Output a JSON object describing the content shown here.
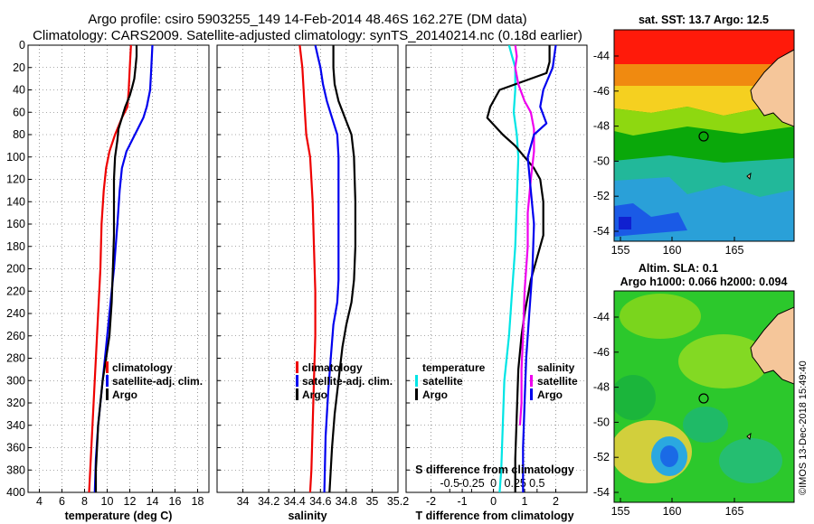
{
  "title_line1": "Argo profile: csiro 5903255_149 14-Feb-2014 48.46S 162.27E (DM data)",
  "title_line2": "Climatology: CARS2009. Satellite-adjusted climatology: synTS_20140214.nc (0.18d earlier)",
  "watermark": "©IMOS 13-Dec-2018 15:49:40",
  "chart_data": [
    {
      "type": "line",
      "id": "temperature",
      "xlabel": "temperature (deg C)",
      "xlim": [
        3,
        19
      ],
      "xticks": [
        4,
        6,
        8,
        10,
        12,
        14,
        16,
        18
      ],
      "ylim": [
        0,
        400
      ],
      "yticks": [
        0,
        20,
        40,
        60,
        80,
        100,
        120,
        140,
        160,
        180,
        200,
        220,
        240,
        260,
        280,
        300,
        320,
        340,
        360,
        380,
        400
      ],
      "legend": [
        "climatology",
        "satellite-adj. clim.",
        "Argo"
      ],
      "series": [
        {
          "name": "climatology",
          "color": "#ee0000",
          "points": [
            [
              12.1,
              0
            ],
            [
              12.0,
              20
            ],
            [
              11.9,
              40
            ],
            [
              11.8,
              55
            ],
            [
              11.3,
              65
            ],
            [
              10.7,
              80
            ],
            [
              10.2,
              95
            ],
            [
              9.9,
              110
            ],
            [
              9.7,
              130
            ],
            [
              9.5,
              160
            ],
            [
              9.4,
              200
            ],
            [
              9.2,
              240
            ],
            [
              9.0,
              280
            ],
            [
              8.8,
              320
            ],
            [
              8.6,
              360
            ],
            [
              8.4,
              400
            ]
          ]
        },
        {
          "name": "satellite-adj. clim.",
          "color": "#0000ee",
          "points": [
            [
              14.0,
              0
            ],
            [
              13.9,
              20
            ],
            [
              13.8,
              40
            ],
            [
              13.5,
              55
            ],
            [
              13.2,
              65
            ],
            [
              12.7,
              75
            ],
            [
              12.2,
              85
            ],
            [
              11.7,
              95
            ],
            [
              11.3,
              110
            ],
            [
              11.1,
              130
            ],
            [
              10.9,
              160
            ],
            [
              10.6,
              200
            ],
            [
              10.2,
              240
            ],
            [
              9.9,
              270
            ],
            [
              9.6,
              300
            ],
            [
              9.4,
              320
            ],
            [
              9.2,
              340
            ],
            [
              9.0,
              370
            ],
            [
              8.9,
              400
            ]
          ]
        },
        {
          "name": "Argo",
          "color": "#000000",
          "points": [
            [
              12.6,
              0
            ],
            [
              12.6,
              10
            ],
            [
              12.5,
              20
            ],
            [
              12.4,
              30
            ],
            [
              12.2,
              38
            ],
            [
              12.0,
              45
            ],
            [
              11.6,
              55
            ],
            [
              11.3,
              65
            ],
            [
              11.0,
              75
            ],
            [
              10.9,
              85
            ],
            [
              10.7,
              100
            ],
            [
              10.6,
              120
            ],
            [
              10.6,
              140
            ],
            [
              10.6,
              170
            ],
            [
              10.5,
              200
            ],
            [
              10.4,
              230
            ],
            [
              10.2,
              260
            ],
            [
              9.9,
              280
            ],
            [
              9.6,
              300
            ],
            [
              9.4,
              320
            ],
            [
              9.2,
              340
            ],
            [
              9.1,
              360
            ],
            [
              9.0,
              380
            ],
            [
              9.0,
              400
            ]
          ]
        }
      ]
    },
    {
      "type": "line",
      "id": "salinity",
      "xlabel": "salinity",
      "xlim": [
        33.8,
        35.2
      ],
      "xticks": [
        34,
        34.2,
        34.4,
        34.6,
        34.8,
        35,
        35.2
      ],
      "xticklabels": [
        "34",
        "34.2",
        "34.4",
        "34.6",
        "34.8",
        "35",
        "35.2"
      ],
      "ylim": [
        0,
        400
      ],
      "legend": [
        "climatology",
        "satellite-adj. clim.",
        "Argo"
      ],
      "series": [
        {
          "name": "climatology",
          "color": "#ee0000",
          "points": [
            [
              34.44,
              0
            ],
            [
              34.46,
              20
            ],
            [
              34.47,
              40
            ],
            [
              34.48,
              60
            ],
            [
              34.49,
              80
            ],
            [
              34.52,
              100
            ],
            [
              34.54,
              140
            ],
            [
              34.55,
              180
            ],
            [
              34.56,
              220
            ],
            [
              34.56,
              260
            ],
            [
              34.55,
              300
            ],
            [
              34.54,
              340
            ],
            [
              34.53,
              380
            ],
            [
              34.52,
              400
            ]
          ]
        },
        {
          "name": "satellite-adj. clim.",
          "color": "#0000ee",
          "points": [
            [
              34.56,
              0
            ],
            [
              34.58,
              10
            ],
            [
              34.6,
              20
            ],
            [
              34.62,
              35
            ],
            [
              34.65,
              50
            ],
            [
              34.69,
              65
            ],
            [
              34.73,
              80
            ],
            [
              34.74,
              100
            ],
            [
              34.74,
              140
            ],
            [
              34.74,
              180
            ],
            [
              34.74,
              210
            ],
            [
              34.73,
              230
            ],
            [
              34.7,
              250
            ],
            [
              34.68,
              280
            ],
            [
              34.66,
              310
            ],
            [
              34.64,
              350
            ],
            [
              34.63,
              400
            ]
          ]
        },
        {
          "name": "Argo",
          "color": "#000000",
          "points": [
            [
              34.7,
              0
            ],
            [
              34.7,
              20
            ],
            [
              34.71,
              35
            ],
            [
              34.74,
              50
            ],
            [
              34.79,
              65
            ],
            [
              34.84,
              80
            ],
            [
              34.86,
              100
            ],
            [
              34.87,
              140
            ],
            [
              34.87,
              180
            ],
            [
              34.86,
              210
            ],
            [
              34.84,
              230
            ],
            [
              34.8,
              250
            ],
            [
              34.77,
              270
            ],
            [
              34.74,
              300
            ],
            [
              34.71,
              330
            ],
            [
              34.69,
              360
            ],
            [
              34.67,
              400
            ]
          ]
        }
      ]
    },
    {
      "type": "line",
      "id": "difference",
      "xlabel": "T difference from climatology",
      "top_axis_label": "S difference from climatology",
      "xlim": [
        -2.8,
        3.0
      ],
      "xticks": [
        -2,
        -1,
        0,
        1,
        2
      ],
      "top_xticks_data": [
        -1.4,
        -0.7,
        0,
        0.7,
        1.4
      ],
      "top_xticklabels": [
        "-0.5",
        "-0.25",
        "0",
        "0.25",
        "0.5"
      ],
      "ylim": [
        0,
        400
      ],
      "legend_left_title": "temperature",
      "legend_right_title": "salinity",
      "legend": [
        "satellite",
        "Argo"
      ],
      "series": [
        {
          "name": "temperature satellite",
          "color": "#00e5e5",
          "points": [
            [
              0.5,
              0
            ],
            [
              0.6,
              10
            ],
            [
              0.7,
              20
            ],
            [
              0.7,
              40
            ],
            [
              0.65,
              60
            ],
            [
              0.75,
              80
            ],
            [
              0.8,
              100
            ],
            [
              0.75,
              140
            ],
            [
              0.7,
              180
            ],
            [
              0.6,
              220
            ],
            [
              0.5,
              260
            ],
            [
              0.35,
              300
            ],
            [
              0.3,
              340
            ],
            [
              0.25,
              380
            ],
            [
              0.2,
              400
            ]
          ]
        },
        {
          "name": "temperature Argo",
          "color": "#000000",
          "points": [
            [
              1.8,
              0
            ],
            [
              1.8,
              15
            ],
            [
              1.7,
              25
            ],
            [
              0.2,
              40
            ],
            [
              -0.1,
              55
            ],
            [
              -0.2,
              65
            ],
            [
              0.3,
              80
            ],
            [
              0.7,
              90
            ],
            [
              1.0,
              100
            ],
            [
              1.3,
              110
            ],
            [
              1.5,
              120
            ],
            [
              1.6,
              140
            ],
            [
              1.6,
              170
            ],
            [
              1.4,
              190
            ],
            [
              1.2,
              210
            ],
            [
              1.0,
              240
            ],
            [
              0.9,
              260
            ],
            [
              0.8,
              290
            ],
            [
              0.75,
              330
            ],
            [
              0.7,
              370
            ],
            [
              0.7,
              400
            ]
          ]
        },
        {
          "name": "salinity satellite",
          "color": "#ee00ee",
          "points": [
            [
              0.7,
              0
            ],
            [
              0.75,
              10
            ],
            [
              0.7,
              20
            ],
            [
              0.8,
              35
            ],
            [
              1.0,
              50
            ],
            [
              1.2,
              60
            ],
            [
              1.3,
              75
            ],
            [
              1.3,
              95
            ],
            [
              1.2,
              120
            ],
            [
              1.1,
              150
            ],
            [
              1.1,
              180
            ],
            [
              1.0,
              220
            ],
            [
              0.95,
              260
            ],
            [
              0.9,
              290
            ],
            [
              0.9,
              320
            ],
            [
              0.85,
              340
            ]
          ]
        },
        {
          "name": "salinity Argo",
          "color": "#0000ee",
          "points": [
            [
              2.0,
              0
            ],
            [
              1.9,
              20
            ],
            [
              1.6,
              40
            ],
            [
              1.5,
              55
            ],
            [
              1.7,
              70
            ],
            [
              1.3,
              80
            ],
            [
              1.1,
              100
            ],
            [
              1.2,
              130
            ],
            [
              1.3,
              160
            ],
            [
              1.25,
              200
            ],
            [
              1.15,
              240
            ],
            [
              1.05,
              280
            ],
            [
              1.0,
              320
            ],
            [
              0.95,
              360
            ],
            [
              0.95,
              400
            ]
          ]
        }
      ]
    }
  ],
  "maps": {
    "sst": {
      "title": "sat. SST: 13.7 Argo: 12.5",
      "lon_ticks": [
        "155",
        "160",
        "165"
      ],
      "lat_ticks": [
        "-44",
        "-46",
        "-48",
        "-50",
        "-52",
        "-54"
      ]
    },
    "sla": {
      "title_line1": "Altim. SLA: 0.1",
      "title_line2": "Argo h1000: 0.066 h2000: 0.094",
      "lon_ticks": [
        "155",
        "160",
        "165"
      ],
      "lat_ticks": [
        "-44",
        "-46",
        "-48",
        "-50",
        "-52",
        "-54"
      ]
    }
  }
}
